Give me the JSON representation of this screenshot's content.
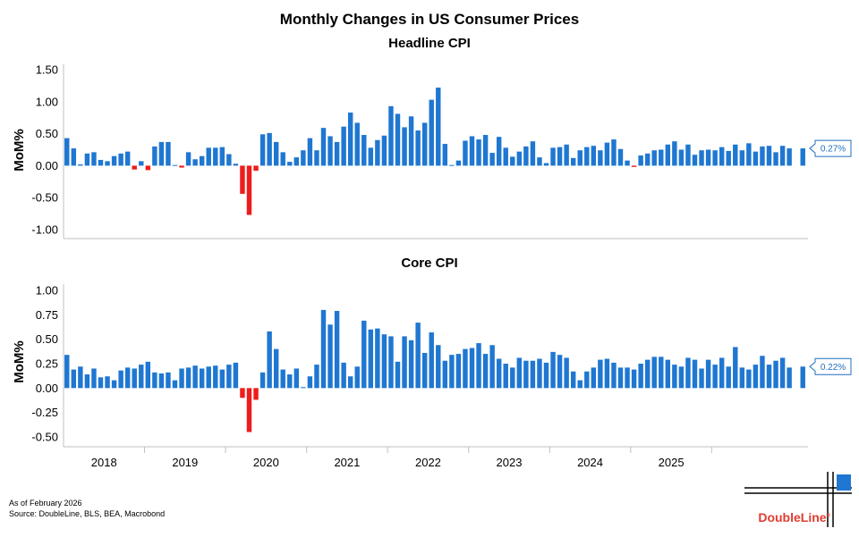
{
  "title": "Monthly Changes in US Consumer Prices",
  "colors": {
    "positive": "#1f77d1",
    "negative": "#ee1c1c",
    "callout": "#1f6fbf",
    "logo": "#e03c31"
  },
  "ylabel": "MoM%",
  "years": [
    "2018",
    "2019",
    "2020",
    "2021",
    "2022",
    "2023",
    "2024",
    "2025"
  ],
  "chart_data": [
    {
      "type": "bar",
      "title": "Headline CPI",
      "ylabel": "MoM%",
      "ylim": [
        -1.0,
        1.5
      ],
      "ticks": [
        "1.50",
        "1.00",
        "0.50",
        "0.00",
        "-0.50",
        "-1.00"
      ],
      "tick_values": [
        1.5,
        1.0,
        0.5,
        0.0,
        -0.5,
        -1.0
      ],
      "callout": "0.27%",
      "callout_value": 0.27,
      "start": "2018-01",
      "values": [
        0.43,
        0.27,
        0.02,
        0.19,
        0.21,
        0.09,
        0.07,
        0.15,
        0.19,
        0.22,
        -0.06,
        0.07,
        -0.07,
        0.3,
        0.37,
        0.37,
        0.01,
        -0.03,
        0.21,
        0.1,
        0.15,
        0.28,
        0.28,
        0.29,
        0.18,
        0.03,
        -0.44,
        -0.77,
        -0.08,
        0.49,
        0.51,
        0.37,
        0.21,
        0.06,
        0.13,
        0.24,
        0.43,
        0.24,
        0.59,
        0.46,
        0.37,
        0.61,
        0.83,
        0.67,
        0.48,
        0.28,
        0.4,
        0.47,
        0.93,
        0.81,
        0.6,
        0.77,
        0.55,
        0.67,
        1.03,
        1.22,
        0.34,
        0.01,
        0.08,
        0.39,
        0.46,
        0.41,
        0.48,
        0.2,
        0.45,
        0.28,
        0.14,
        0.22,
        0.3,
        0.38,
        0.13,
        0.04,
        0.28,
        0.29,
        0.33,
        0.12,
        0.24,
        0.29,
        0.31,
        0.24,
        0.36,
        0.41,
        0.26,
        0.08,
        -0.02,
        0.16,
        0.19,
        0.24,
        0.25,
        0.33,
        0.38,
        0.25,
        0.33,
        0.17,
        0.24,
        0.25,
        0.24,
        0.29,
        0.23,
        0.33,
        0.24,
        0.35,
        0.22,
        0.3,
        0.31,
        0.21,
        0.31,
        0.27,
        null,
        0.27
      ]
    },
    {
      "type": "bar",
      "title": "Core CPI",
      "ylabel": "MoM%",
      "ylim": [
        -0.5,
        1.0
      ],
      "ticks": [
        "1.00",
        "0.75",
        "0.50",
        "0.25",
        "0.00",
        "-0.25",
        "-0.50"
      ],
      "tick_values": [
        1.0,
        0.75,
        0.5,
        0.25,
        0.0,
        -0.25,
        -0.5
      ],
      "callout": "0.22%",
      "callout_value": 0.22,
      "start": "2018-01",
      "values": [
        0.34,
        0.19,
        0.22,
        0.14,
        0.2,
        0.11,
        0.12,
        0.08,
        0.18,
        0.21,
        0.2,
        0.24,
        0.27,
        0.16,
        0.15,
        0.16,
        0.08,
        0.2,
        0.21,
        0.23,
        0.2,
        0.22,
        0.23,
        0.19,
        0.24,
        0.26,
        -0.1,
        -0.45,
        -0.12,
        0.16,
        0.58,
        0.4,
        0.19,
        0.14,
        0.2,
        0.01,
        0.12,
        0.24,
        0.8,
        0.65,
        0.79,
        0.26,
        0.12,
        0.22,
        0.69,
        0.6,
        0.61,
        0.55,
        0.53,
        0.27,
        0.53,
        0.49,
        0.67,
        0.36,
        0.57,
        0.44,
        0.28,
        0.34,
        0.35,
        0.4,
        0.41,
        0.46,
        0.35,
        0.44,
        0.3,
        0.25,
        0.21,
        0.31,
        0.28,
        0.28,
        0.3,
        0.26,
        0.37,
        0.34,
        0.31,
        0.17,
        0.08,
        0.17,
        0.21,
        0.29,
        0.3,
        0.26,
        0.21,
        0.21,
        0.19,
        0.25,
        0.29,
        0.32,
        0.32,
        0.29,
        0.24,
        0.22,
        0.31,
        0.29,
        0.2,
        0.29,
        0.24,
        0.31,
        0.22,
        0.42,
        0.21,
        0.19,
        0.24,
        0.33,
        0.24,
        0.28,
        0.31,
        0.21,
        null,
        0.22
      ]
    }
  ],
  "footnotes": {
    "as_of": "As of February 2026",
    "source": "Source: DoubleLine, BLS, BEA, Macrobond"
  },
  "logo": "DoubleLine"
}
